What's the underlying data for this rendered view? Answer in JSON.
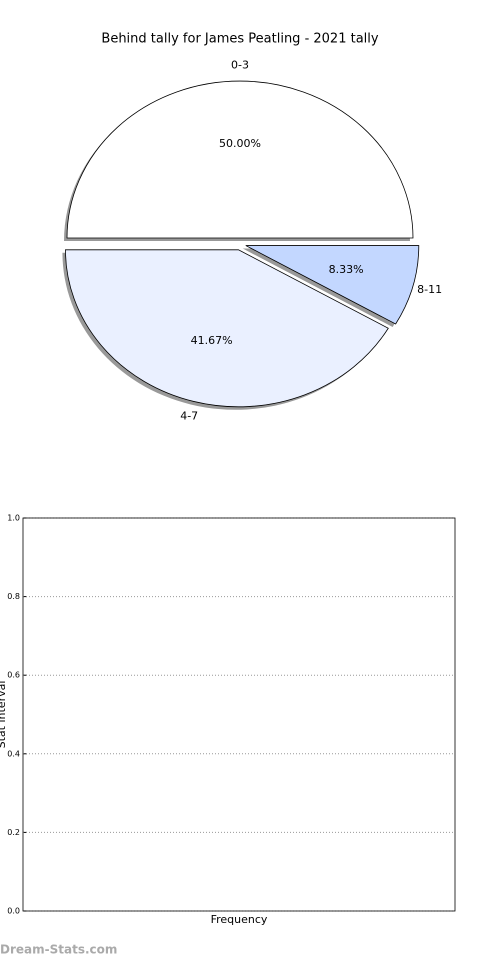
{
  "chart_data": [
    {
      "type": "pie",
      "title": "Behind tally for James Peatling - 2021 tally",
      "categories": [
        "0-3",
        "4-7",
        "8-11"
      ],
      "values": [
        50,
        41.67,
        8.33
      ],
      "value_labels": [
        "50.00%",
        "41.67%",
        "8.33%"
      ],
      "colors": [
        "#ffffff",
        "#eaf0ff",
        "#c3d7ff"
      ]
    },
    {
      "type": "bar",
      "xlabel": "Frequency",
      "ylabel": "Stat interval",
      "categories": [],
      "values": [],
      "ylim": [
        0,
        1
      ],
      "yticks": [
        {
          "value": 0,
          "label": "0.0"
        },
        {
          "value": 0.2,
          "label": "0.2"
        },
        {
          "value": 0.4,
          "label": "0.4"
        },
        {
          "value": 0.6,
          "label": "0.6"
        },
        {
          "value": 0.8,
          "label": "0.8"
        },
        {
          "value": 1,
          "label": "1.0"
        }
      ],
      "grid": true
    }
  ],
  "watermark": "Dream-Stats.com"
}
